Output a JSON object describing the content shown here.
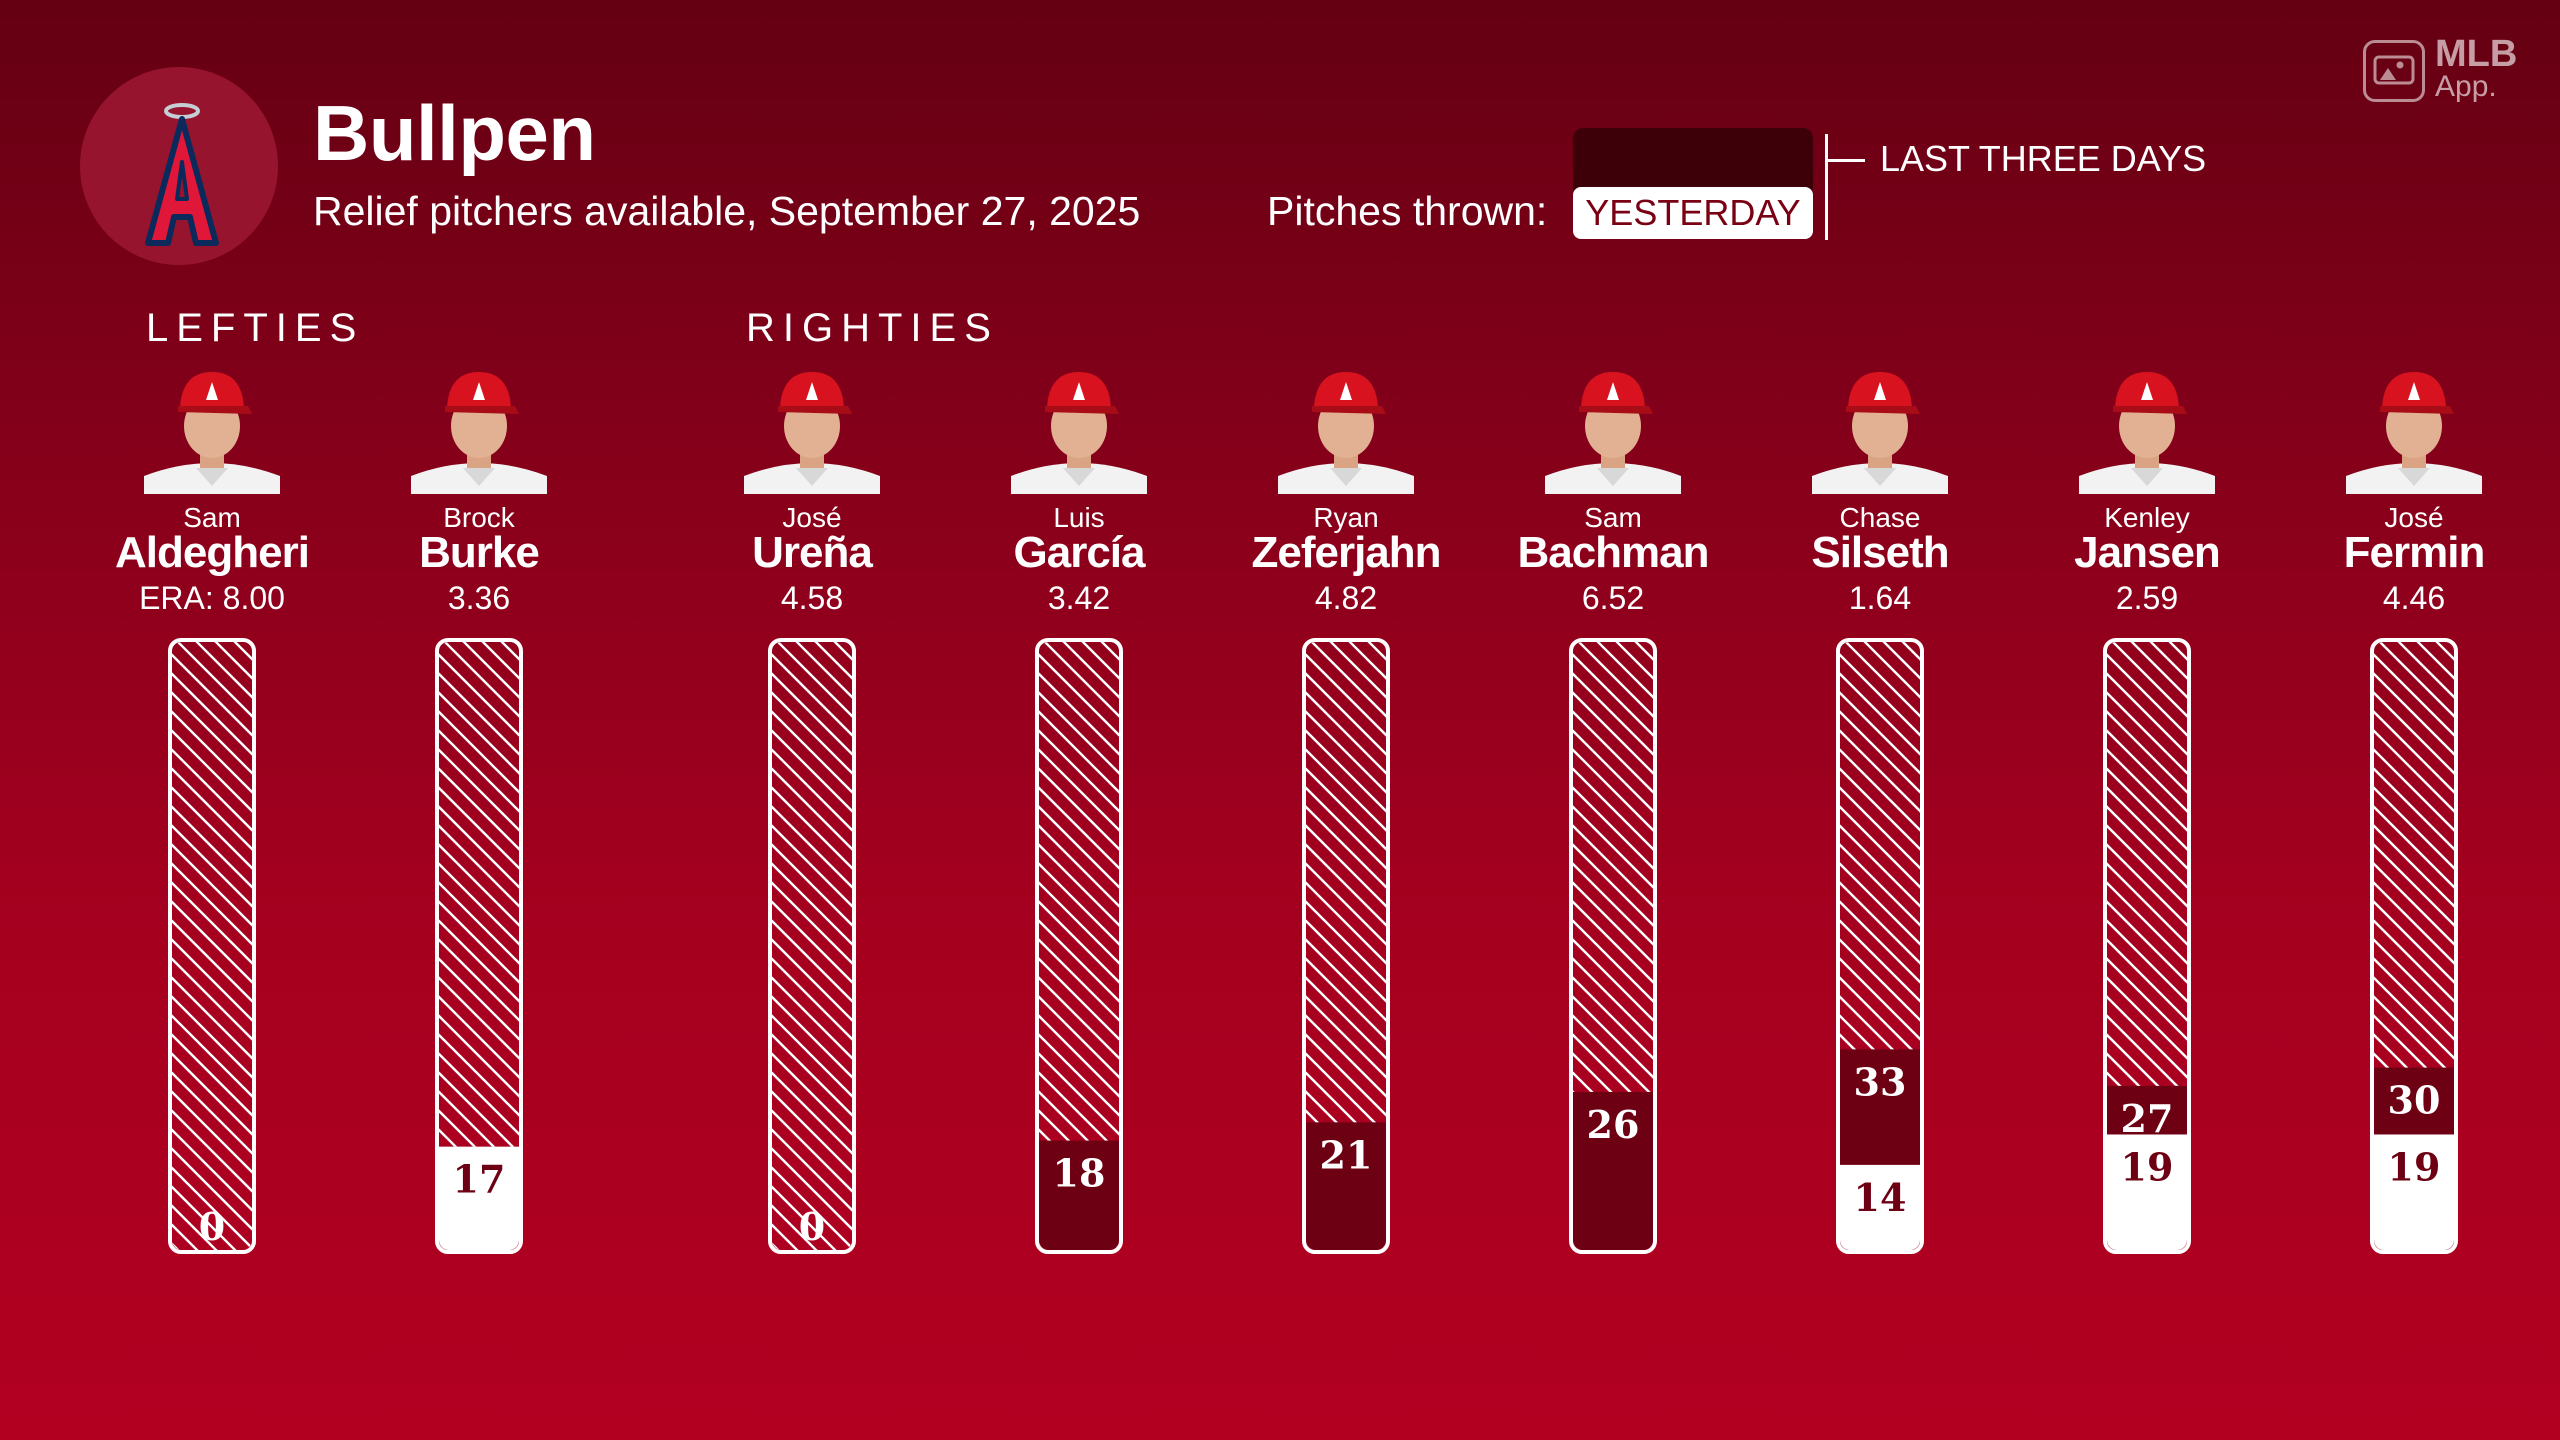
{
  "header": {
    "title": "Bullpen",
    "subtitle": "Relief pitchers available, September 27, 2025",
    "pitches_label": "Pitches thrown:",
    "legend_yesterday": "YESTERDAY",
    "legend_last_three_days": "LAST THREE DAYS",
    "team_logo_icon": "angels-logo-icon",
    "brand_mlb": "MLB",
    "brand_app": "App."
  },
  "sections": {
    "lefties": "LEFTIES",
    "righties": "RIGHTIES"
  },
  "colors": {
    "background_top": "#640012",
    "background_bottom": "#b20021",
    "yesterday_fill": "#ffffff",
    "last_three_days_fill": "#6e0013",
    "hatch_stroke": "#ffffff"
  },
  "chart_data": {
    "type": "bar",
    "stacked": true,
    "ylim": [
      0,
      100
    ],
    "categories": [
      "Aldegheri",
      "Burke",
      "Ureña",
      "García",
      "Zeferjahn",
      "Bachman",
      "Silseth",
      "Jansen",
      "Fermin"
    ],
    "pitchers": [
      {
        "first": "Sam",
        "last": "Aldegheri",
        "era": "ERA: 8.00",
        "yesterday": 0,
        "last_three_days": 0,
        "label_yesterday": "",
        "label_three_days": "0",
        "hand": "L"
      },
      {
        "first": "Brock",
        "last": "Burke",
        "era": "3.36",
        "yesterday": 17,
        "last_three_days": 17,
        "label_yesterday": "17",
        "label_three_days": "",
        "hand": "L"
      },
      {
        "first": "José",
        "last": "Ureña",
        "era": "4.58",
        "yesterday": 0,
        "last_three_days": 0,
        "label_yesterday": "",
        "label_three_days": "0",
        "hand": "R"
      },
      {
        "first": "Luis",
        "last": "García",
        "era": "3.42",
        "yesterday": 0,
        "last_three_days": 18,
        "label_yesterday": "",
        "label_three_days": "18",
        "hand": "R"
      },
      {
        "first": "Ryan",
        "last": "Zeferjahn",
        "era": "4.82",
        "yesterday": 0,
        "last_three_days": 21,
        "label_yesterday": "",
        "label_three_days": "21",
        "hand": "R"
      },
      {
        "first": "Sam",
        "last": "Bachman",
        "era": "6.52",
        "yesterday": 0,
        "last_three_days": 26,
        "label_yesterday": "",
        "label_three_days": "26",
        "hand": "R"
      },
      {
        "first": "Chase",
        "last": "Silseth",
        "era": "1.64",
        "yesterday": 14,
        "last_three_days": 33,
        "label_yesterday": "14",
        "label_three_days": "33",
        "hand": "R"
      },
      {
        "first": "Kenley",
        "last": "Jansen",
        "era": "2.59",
        "yesterday": 19,
        "last_three_days": 27,
        "label_yesterday": "19",
        "label_three_days": "27",
        "hand": "R"
      },
      {
        "first": "José",
        "last": "Fermin",
        "era": "4.46",
        "yesterday": 19,
        "last_three_days": 30,
        "label_yesterday": "19",
        "label_three_days": "30",
        "hand": "R"
      }
    ],
    "series": [
      {
        "name": "YESTERDAY",
        "values": [
          0,
          17,
          0,
          0,
          0,
          0,
          14,
          19,
          19
        ]
      },
      {
        "name": "LAST THREE DAYS",
        "values": [
          0,
          17,
          0,
          18,
          21,
          26,
          33,
          27,
          30
        ]
      }
    ],
    "grid": false,
    "legend": "top-right"
  }
}
